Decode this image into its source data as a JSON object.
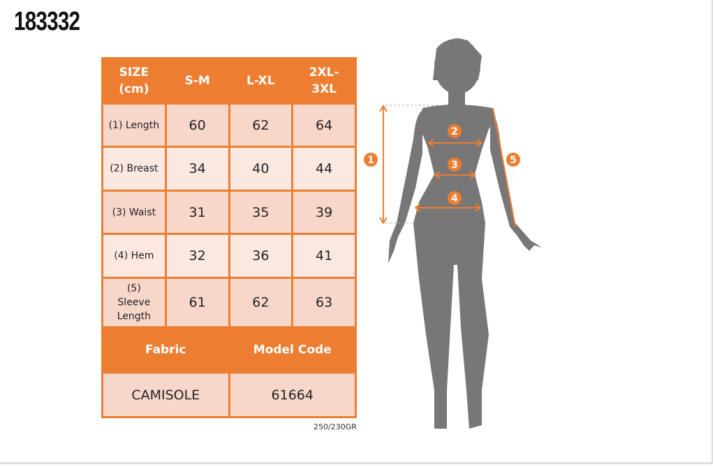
{
  "product_code": "183332",
  "table": {
    "headers": [
      "SIZE\n(cm)",
      "S-M",
      "L-XL",
      "2XL-\n3XL"
    ],
    "rows": [
      {
        "label": "(1) Length",
        "values": [
          "60",
          "62",
          "64"
        ]
      },
      {
        "label": "(2) Breast",
        "values": [
          "34",
          "40",
          "44"
        ]
      },
      {
        "label": "(3) Waist",
        "values": [
          "31",
          "35",
          "39"
        ]
      },
      {
        "label": "(4) Hem",
        "values": [
          "32",
          "36",
          "41"
        ]
      },
      {
        "label": "(5) Sleeve Length",
        "values": [
          "61",
          "62",
          "63"
        ]
      }
    ],
    "footer_headers": [
      "Fabric",
      "Model Code"
    ],
    "footer_values": [
      "CAMISOLE",
      "61664"
    ]
  },
  "weight": "250/230GR",
  "figure": {
    "markers": [
      "1",
      "2",
      "3",
      "4",
      "5"
    ]
  },
  "colors": {
    "accent": "#ED7D31",
    "cell_dark": "#F8D7CB",
    "cell_light": "#FBE8E1",
    "silhouette": "#777777"
  }
}
